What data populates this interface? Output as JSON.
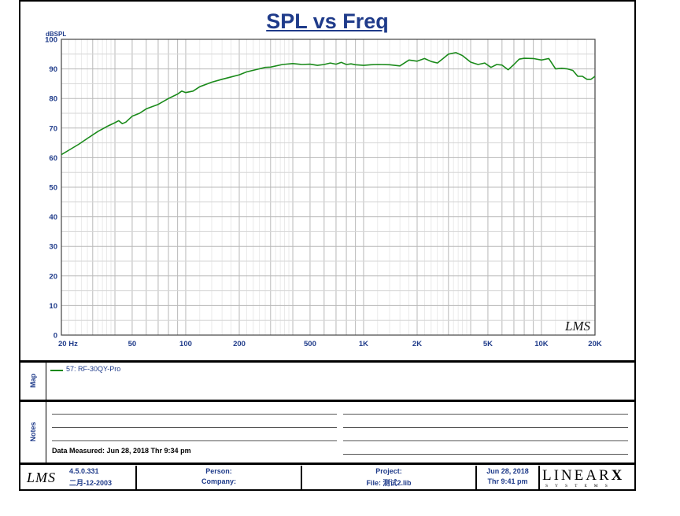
{
  "chart_data": {
    "type": "line",
    "title": "SPL vs Freq",
    "ylabel": "dBSPL",
    "xlabel": "",
    "xscale": "log",
    "xlim": [
      20,
      20000
    ],
    "ylim": [
      0,
      100
    ],
    "yticks": [
      0,
      10,
      20,
      30,
      40,
      50,
      60,
      70,
      80,
      90,
      100
    ],
    "xticks": [
      {
        "value": 20,
        "label": "20  Hz"
      },
      {
        "value": 50,
        "label": "50"
      },
      {
        "value": 100,
        "label": "100"
      },
      {
        "value": 200,
        "label": "200"
      },
      {
        "value": 500,
        "label": "500"
      },
      {
        "value": 1000,
        "label": "1K"
      },
      {
        "value": 2000,
        "label": "2K"
      },
      {
        "value": 5000,
        "label": "5K"
      },
      {
        "value": 10000,
        "label": "10K"
      },
      {
        "value": 20000,
        "label": "20K"
      }
    ],
    "grid": true,
    "series": [
      {
        "name": "57: RF-30QY-Pro",
        "color": "#1a8a1a",
        "x": [
          20,
          22,
          25,
          28,
          32,
          36,
          40,
          42,
          44,
          46,
          50,
          55,
          60,
          70,
          80,
          90,
          95,
          100,
          110,
          120,
          140,
          160,
          180,
          200,
          220,
          250,
          280,
          300,
          350,
          400,
          450,
          500,
          550,
          600,
          650,
          700,
          750,
          800,
          850,
          900,
          1000,
          1100,
          1200,
          1400,
          1600,
          1800,
          2000,
          2200,
          2400,
          2600,
          2800,
          3000,
          3300,
          3600,
          4000,
          4400,
          4800,
          5200,
          5600,
          6000,
          6500,
          7000,
          7500,
          8000,
          9000,
          10000,
          11000,
          12000,
          13000,
          14000,
          15000,
          16000,
          17000,
          18000,
          19000,
          20000
        ],
        "y": [
          61,
          62.5,
          64.5,
          66.5,
          68.8,
          70.5,
          71.8,
          72.5,
          71.5,
          72,
          74,
          75,
          76.5,
          78,
          80,
          81.5,
          82.5,
          82,
          82.5,
          84,
          85.5,
          86.5,
          87.3,
          88,
          89,
          89.8,
          90.5,
          90.6,
          91.5,
          91.8,
          91.5,
          91.6,
          91.2,
          91.5,
          92,
          91.6,
          92.2,
          91.5,
          91.7,
          91.4,
          91.2,
          91.4,
          91.5,
          91.4,
          91,
          93,
          92.6,
          93.5,
          92.5,
          92,
          93.5,
          95,
          95.5,
          94.5,
          92.3,
          91.5,
          92,
          90.5,
          91.5,
          91.3,
          89.7,
          91.5,
          93.3,
          93.6,
          93.5,
          93,
          93.5,
          90,
          90.2,
          90,
          89.5,
          87.5,
          87.5,
          86.5,
          86.5,
          87.5
        ]
      }
    ]
  },
  "map_panel": {
    "label": "Map",
    "legend_color": "#1a8a1a",
    "legend_text": "57: RF-30QY-Pro"
  },
  "notes_panel": {
    "label": "Notes",
    "date_measured": "Data Measured: Jun 28, 2018  Thr  9:34 pm"
  },
  "footer": {
    "logo": "LMS",
    "version": "4.5.0.331",
    "version_date": "二月-12-2003",
    "person_label": "Person:",
    "company_label": "Company:",
    "project_label": "Project:",
    "file_label": "File: 测试2.lib",
    "date": "Jun 28, 2018",
    "time": "Thr  9:41 pm",
    "brand_word": "LINEAR",
    "brand_x": "X",
    "brand_sub": "SYSTEMS"
  },
  "watermark": "LMS",
  "colors": {
    "curve": "#1a8a1a",
    "title": "#1f3b8a",
    "axis_text": "#1f3b8a",
    "grid": "#b8b8b8"
  }
}
